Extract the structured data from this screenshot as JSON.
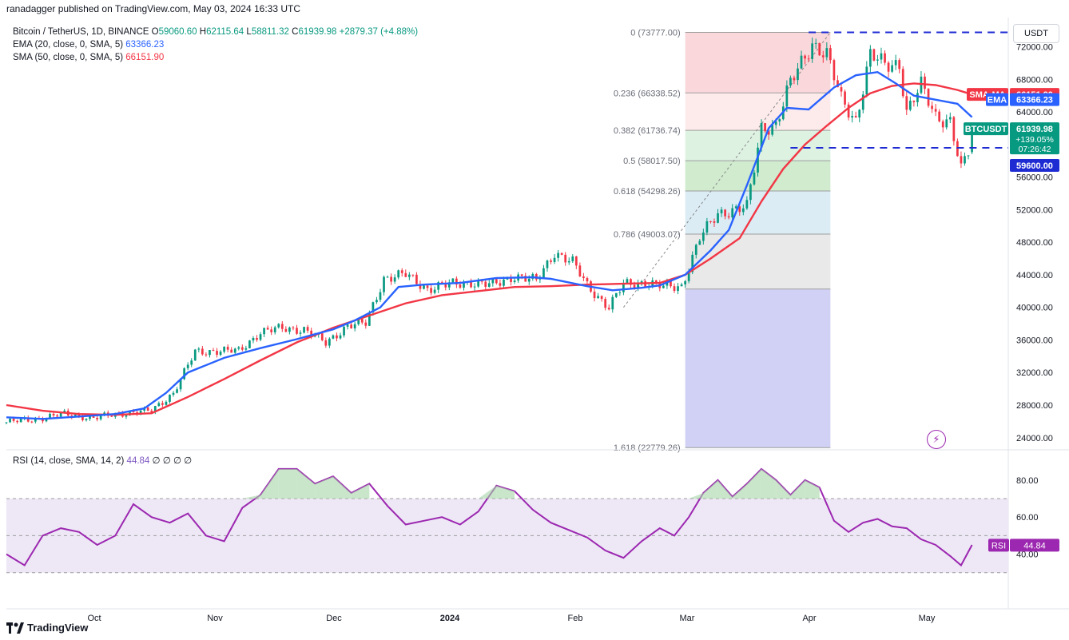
{
  "header": {
    "published": "ranadagger published on TradingView.com, May 03, 2024 16:33 UTC"
  },
  "legend": {
    "symbol": "Bitcoin / TetherUS, 1D, BINANCE",
    "o_label": "O",
    "o": "59060.60",
    "h_label": "H",
    "h": "62115.64",
    "l_label": "L",
    "l": "58811.32",
    "c_label": "C",
    "c": "61939.98",
    "change": "+2879.37 (+4.88%)",
    "ema_label": "EMA (20, close, 0, SMA, 5)",
    "ema_value": "63366.23",
    "sma_label": "SMA (50, close, 0, SMA, 5)",
    "sma_value": "66151.90"
  },
  "rsi_legend": {
    "label": "RSI (14, close, SMA, 14, 2)",
    "value": "44.84",
    "extra": "∅ ∅ ∅ ∅"
  },
  "currency_button": "USDT",
  "brand": "TradingView",
  "colors": {
    "up": "#089981",
    "down": "#f23645",
    "ema": "#2962ff",
    "sma": "#f23645",
    "rsi": "#9c27b0",
    "rsi_band": "#ede7f6",
    "level": "#1e2bd3"
  },
  "chart_data": [
    {
      "type": "candlestick",
      "title": "",
      "price_axis": {
        "ticks": [
          "72000.00",
          "68000.00",
          "64000.00",
          "60000.00",
          "56000.00",
          "52000.00",
          "48000.00",
          "44000.00",
          "40000.00",
          "36000.00",
          "32000.00",
          "28000.00",
          "24000.00"
        ],
        "range": [
          22800,
          75000
        ]
      },
      "time_axis": {
        "ticks": [
          "Oct",
          "Nov",
          "Dec",
          "2024",
          "Feb",
          "Mar",
          "Apr",
          "May"
        ]
      },
      "price_labels": {
        "sma": {
          "text": "SMA:MA",
          "value": "66151.90"
        },
        "ema": {
          "text": "EMA",
          "value": "63366.23"
        },
        "last": {
          "text": "BTCUSDT",
          "value": "61939.98",
          "change": "+139.05%",
          "countdown": "07:26:42"
        },
        "level": {
          "value": "59600.00"
        }
      },
      "horizontal_levels": [
        73777,
        59600
      ],
      "fibonacci": [
        {
          "ratio": "0",
          "price": "73777.00",
          "label": "0 (73777.00)",
          "color": "#f8d0d3"
        },
        {
          "ratio": "0.236",
          "price": "66338.52",
          "label": "0.236 (66338.52)",
          "color": "#fde7e8"
        },
        {
          "ratio": "0.382",
          "price": "61736.74",
          "label": "0.382 (61736.74)",
          "color": "#d8f0dd"
        },
        {
          "ratio": "0.5",
          "price": "58017.50",
          "label": "0.5 (58017.50)",
          "color": "#c8e8c6"
        },
        {
          "ratio": "0.618",
          "price": "54298.26",
          "label": "0.618 (54298.26)",
          "color": "#d5e9f3"
        },
        {
          "ratio": "0.786",
          "price": "49003.07",
          "label": "0.786 (49003.07)",
          "color": "#e5e5e5"
        },
        {
          "ratio": "1",
          "price": "42258",
          "label": "",
          "color": "#c9c9f3"
        },
        {
          "ratio": "1.618",
          "price": "22779.26",
          "label": "1.618 (22779.26)",
          "color": ""
        }
      ],
      "ema_series": [
        [
          0,
          26500
        ],
        [
          10,
          26300
        ],
        [
          20,
          26600
        ],
        [
          30,
          26900
        ],
        [
          38,
          27600
        ],
        [
          44,
          29500
        ],
        [
          50,
          32000
        ],
        [
          60,
          33800
        ],
        [
          70,
          35000
        ],
        [
          80,
          36100
        ],
        [
          90,
          37300
        ],
        [
          96,
          38400
        ],
        [
          103,
          40000
        ],
        [
          108,
          42500
        ],
        [
          115,
          42800
        ],
        [
          125,
          43000
        ],
        [
          135,
          43600
        ],
        [
          145,
          43700
        ],
        [
          150,
          43500
        ],
        [
          160,
          42600
        ],
        [
          167,
          42100
        ],
        [
          175,
          42400
        ],
        [
          180,
          42700
        ],
        [
          187,
          44000
        ],
        [
          194,
          47000
        ],
        [
          199,
          49500
        ],
        [
          204,
          55000
        ],
        [
          210,
          62000
        ],
        [
          215,
          64500
        ],
        [
          221,
          64300
        ],
        [
          228,
          67000
        ],
        [
          234,
          68500
        ],
        [
          240,
          68900
        ],
        [
          245,
          67500
        ],
        [
          250,
          66000
        ],
        [
          256,
          65500
        ],
        [
          262,
          65000
        ],
        [
          266,
          63366
        ]
      ],
      "sma_series": [
        [
          0,
          28000
        ],
        [
          10,
          27300
        ],
        [
          20,
          26900
        ],
        [
          30,
          26800
        ],
        [
          40,
          27000
        ],
        [
          50,
          29000
        ],
        [
          60,
          31200
        ],
        [
          70,
          33500
        ],
        [
          80,
          35700
        ],
        [
          90,
          37500
        ],
        [
          100,
          39000
        ],
        [
          110,
          40500
        ],
        [
          120,
          41500
        ],
        [
          130,
          42000
        ],
        [
          140,
          42500
        ],
        [
          150,
          42600
        ],
        [
          160,
          42800
        ],
        [
          170,
          42900
        ],
        [
          180,
          43000
        ],
        [
          187,
          44000
        ],
        [
          194,
          46000
        ],
        [
          202,
          48500
        ],
        [
          208,
          53000
        ],
        [
          214,
          57000
        ],
        [
          220,
          60000
        ],
        [
          226,
          62300
        ],
        [
          232,
          64500
        ],
        [
          238,
          66300
        ],
        [
          244,
          67200
        ],
        [
          250,
          67500
        ],
        [
          256,
          67300
        ],
        [
          262,
          66700
        ],
        [
          266,
          66152
        ]
      ],
      "price_path": [
        [
          0,
          25900
        ],
        [
          8,
          26300
        ],
        [
          16,
          26900
        ],
        [
          24,
          26400
        ],
        [
          32,
          27000
        ],
        [
          40,
          27300
        ],
        [
          46,
          29500
        ],
        [
          52,
          34500
        ],
        [
          58,
          34700
        ],
        [
          64,
          34600
        ],
        [
          70,
          37000
        ],
        [
          76,
          37400
        ],
        [
          82,
          37300
        ],
        [
          88,
          35600
        ],
        [
          94,
          37800
        ],
        [
          99,
          38000
        ],
        [
          104,
          43600
        ],
        [
          110,
          44000
        ],
        [
          116,
          42300
        ],
        [
          122,
          42800
        ],
        [
          128,
          43100
        ],
        [
          134,
          42700
        ],
        [
          140,
          43900
        ],
        [
          146,
          43200
        ],
        [
          151,
          46800
        ],
        [
          156,
          45500
        ],
        [
          160,
          42700
        ],
        [
          166,
          40000
        ],
        [
          170,
          42800
        ],
        [
          176,
          43100
        ],
        [
          181,
          42500
        ],
        [
          186,
          42600
        ],
        [
          191,
          48500
        ],
        [
          196,
          51500
        ],
        [
          200,
          52000
        ],
        [
          204,
          52300
        ],
        [
          206,
          57000
        ],
        [
          208,
          62000
        ],
        [
          212,
          62500
        ],
        [
          216,
          67500
        ],
        [
          222,
          72500
        ],
        [
          226,
          71000
        ],
        [
          230,
          65500
        ],
        [
          234,
          63000
        ],
        [
          238,
          71000
        ],
        [
          242,
          69700
        ],
        [
          246,
          70000
        ],
        [
          248,
          64000
        ],
        [
          252,
          67200
        ],
        [
          256,
          63500
        ],
        [
          260,
          62900
        ],
        [
          263,
          56800
        ],
        [
          265,
          59060
        ],
        [
          266,
          61940
        ]
      ],
      "rsi": {
        "levels": [
          70,
          50,
          30
        ],
        "ticks": [
          "80.00",
          "60.00",
          "40.00"
        ],
        "current": "44.84",
        "values": [
          [
            0,
            40
          ],
          [
            5,
            34
          ],
          [
            10,
            50
          ],
          [
            15,
            54
          ],
          [
            20,
            52
          ],
          [
            25,
            45
          ],
          [
            30,
            50
          ],
          [
            35,
            67
          ],
          [
            40,
            60
          ],
          [
            45,
            57
          ],
          [
            50,
            62
          ],
          [
            55,
            50
          ],
          [
            60,
            47
          ],
          [
            65,
            65
          ],
          [
            70,
            72
          ],
          [
            75,
            86
          ],
          [
            80,
            86
          ],
          [
            85,
            78
          ],
          [
            90,
            82
          ],
          [
            95,
            73
          ],
          [
            100,
            78
          ],
          [
            105,
            66
          ],
          [
            110,
            56
          ],
          [
            115,
            58
          ],
          [
            120,
            60
          ],
          [
            125,
            56
          ],
          [
            130,
            63
          ],
          [
            135,
            77
          ],
          [
            140,
            74
          ],
          [
            145,
            64
          ],
          [
            150,
            57
          ],
          [
            155,
            53
          ],
          [
            160,
            49
          ],
          [
            165,
            42
          ],
          [
            170,
            38
          ],
          [
            175,
            47
          ],
          [
            180,
            54
          ],
          [
            184,
            50
          ],
          [
            188,
            60
          ],
          [
            192,
            73
          ],
          [
            196,
            80
          ],
          [
            200,
            71
          ],
          [
            204,
            78
          ],
          [
            208,
            86
          ],
          [
            212,
            80
          ],
          [
            216,
            72
          ],
          [
            220,
            80
          ],
          [
            224,
            76
          ],
          [
            228,
            58
          ],
          [
            232,
            52
          ],
          [
            236,
            57
          ],
          [
            240,
            59
          ],
          [
            244,
            55
          ],
          [
            248,
            54
          ],
          [
            252,
            48
          ],
          [
            256,
            45
          ],
          [
            260,
            39
          ],
          [
            263,
            34
          ],
          [
            266,
            45
          ]
        ]
      }
    }
  ]
}
